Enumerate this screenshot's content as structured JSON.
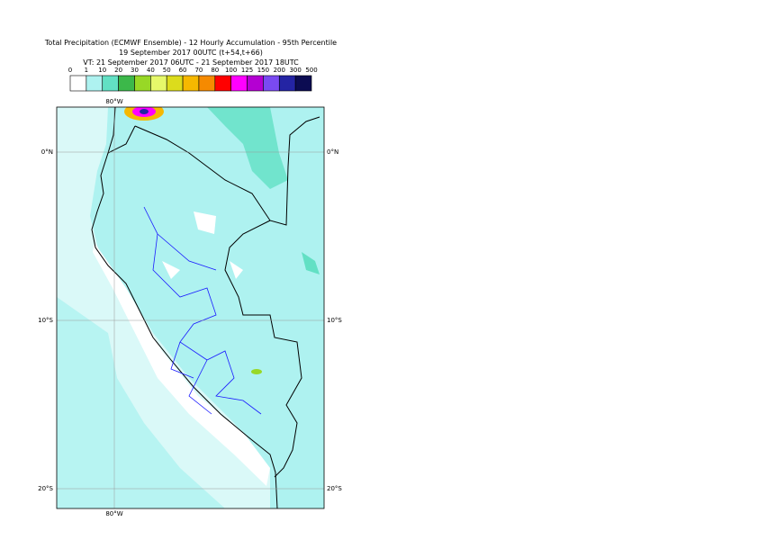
{
  "header": {
    "title": "Total Precipitation (ECMWF Ensemble) - 12 Hourly Accumulation - 95th Percentile",
    "subtitle": "19 September 2017 00UTC (t+54,t+66)",
    "valid_time": "VT: 21 September 2017 06UTC - 21 September 2017 18UTC"
  },
  "legend": {
    "labels": [
      "0",
      "1",
      "10",
      "20",
      "30",
      "40",
      "50",
      "60",
      "70",
      "80",
      "100",
      "125",
      "150",
      "200",
      "300",
      "500"
    ],
    "colors": [
      "#ffffff",
      "#aef2f0",
      "#62e0c4",
      "#3cb84a",
      "#98d826",
      "#e6f86a",
      "#dcdc1c",
      "#f6b800",
      "#f68a00",
      "#ff0000",
      "#ff00ff",
      "#b400d2",
      "#7a4af2",
      "#2424a4",
      "#0c0c52"
    ]
  },
  "axes": {
    "top": "80°W",
    "bottom": "80°W",
    "left": [
      "0°N",
      "10°S",
      "20°S"
    ],
    "right": [
      "0°N",
      "10°S",
      "20°S"
    ]
  }
}
